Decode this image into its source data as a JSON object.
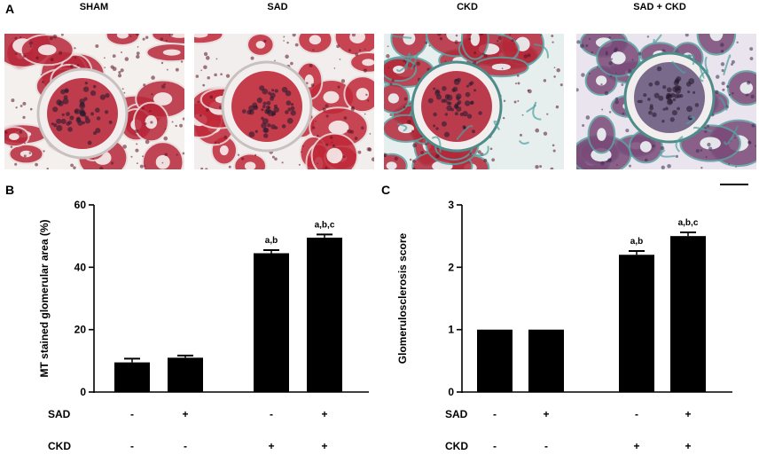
{
  "panels": {
    "a": "A",
    "b": "B",
    "c": "C"
  },
  "micrographs": [
    {
      "label": "SHAM",
      "stain": "masson-trichrome",
      "tint": "#b8283a",
      "bg": "#f4f0ee"
    },
    {
      "label": "SAD",
      "stain": "masson-trichrome",
      "tint": "#c02838",
      "bg": "#f2eeee"
    },
    {
      "label": "CKD",
      "stain": "masson-trichrome",
      "tint": "#b4283a",
      "bg": "#e6eeee"
    },
    {
      "label": "SAD + CKD",
      "stain": "masson-trichrome",
      "tint": "#7a4a78",
      "bg": "#eae4ee"
    }
  ],
  "scale_bar": true,
  "chart_data": [
    {
      "type": "bar",
      "panel": "B",
      "ylabel": "MT stained glomerular area (%)",
      "ylim": [
        0,
        60
      ],
      "yticks": [
        0,
        20,
        40,
        60
      ],
      "values": [
        9.5,
        11,
        44.5,
        49.5
      ],
      "errors": [
        1.2,
        0.7,
        1.0,
        1.0
      ],
      "significance": [
        "",
        "",
        "a,b",
        "a,b,c"
      ],
      "conditions": [
        {
          "name": "SAD",
          "values": [
            "-",
            "+",
            "-",
            "+"
          ]
        },
        {
          "name": "CKD",
          "values": [
            "-",
            "-",
            "+",
            "+"
          ]
        }
      ]
    },
    {
      "type": "bar",
      "panel": "C",
      "ylabel": "Glomerulosclerosis score",
      "ylim": [
        0,
        3
      ],
      "yticks": [
        0,
        1,
        2,
        3
      ],
      "values": [
        1.0,
        1.0,
        2.2,
        2.5
      ],
      "errors": [
        0,
        0,
        0.06,
        0.06
      ],
      "significance": [
        "",
        "",
        "a,b",
        "a,b,c"
      ],
      "conditions": [
        {
          "name": "SAD",
          "values": [
            "-",
            "+",
            "-",
            "+"
          ]
        },
        {
          "name": "CKD",
          "values": [
            "-",
            "-",
            "+",
            "+"
          ]
        }
      ]
    }
  ]
}
